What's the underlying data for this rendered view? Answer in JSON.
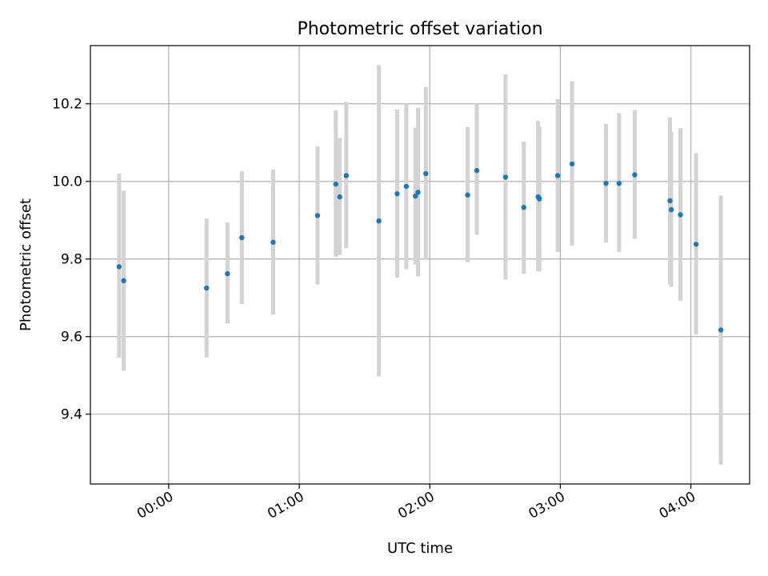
{
  "chart_data": {
    "type": "scatter",
    "title": "Photometric offset variation",
    "xlabel": "UTC time",
    "ylabel": "Photometric offset",
    "x_unit": "hours",
    "xlim": [
      -0.6,
      4.45
    ],
    "ylim": [
      9.22,
      10.35
    ],
    "grid": true,
    "xticks": [
      {
        "value": 0,
        "label": "00:00"
      },
      {
        "value": 1,
        "label": "01:00"
      },
      {
        "value": 2,
        "label": "02:00"
      },
      {
        "value": 3,
        "label": "03:00"
      },
      {
        "value": 4,
        "label": "04:00"
      }
    ],
    "yticks": [
      {
        "value": 9.4,
        "label": "9.4"
      },
      {
        "value": 9.6,
        "label": "9.6"
      },
      {
        "value": 9.8,
        "label": "9.8"
      },
      {
        "value": 10.0,
        "label": "10.0"
      },
      {
        "value": 10.2,
        "label": "10.2"
      }
    ],
    "marker_color": "#1f77b4",
    "errorbar_color": "#d3d3d3",
    "points": [
      {
        "x": -0.38,
        "y": 9.78,
        "ylo": 9.545,
        "yhi": 10.02
      },
      {
        "x": -0.345,
        "y": 9.744,
        "ylo": 9.512,
        "yhi": 9.976
      },
      {
        "x": 0.29,
        "y": 9.725,
        "ylo": 9.546,
        "yhi": 9.904
      },
      {
        "x": 0.45,
        "y": 9.762,
        "ylo": 9.634,
        "yhi": 9.894
      },
      {
        "x": 0.56,
        "y": 9.855,
        "ylo": 9.684,
        "yhi": 10.026
      },
      {
        "x": 0.8,
        "y": 9.843,
        "ylo": 9.656,
        "yhi": 10.03
      },
      {
        "x": 1.14,
        "y": 9.912,
        "ylo": 9.734,
        "yhi": 10.09
      },
      {
        "x": 1.28,
        "y": 9.993,
        "ylo": 9.806,
        "yhi": 10.183
      },
      {
        "x": 1.31,
        "y": 9.96,
        "ylo": 9.81,
        "yhi": 10.112
      },
      {
        "x": 1.36,
        "y": 10.015,
        "ylo": 9.828,
        "yhi": 10.205
      },
      {
        "x": 1.61,
        "y": 9.898,
        "ylo": 9.497,
        "yhi": 10.3
      },
      {
        "x": 1.75,
        "y": 9.968,
        "ylo": 9.752,
        "yhi": 10.185
      },
      {
        "x": 1.82,
        "y": 9.987,
        "ylo": 9.774,
        "yhi": 10.2
      },
      {
        "x": 1.89,
        "y": 9.962,
        "ylo": 9.786,
        "yhi": 10.138
      },
      {
        "x": 1.91,
        "y": 9.972,
        "ylo": 9.755,
        "yhi": 10.19
      },
      {
        "x": 1.97,
        "y": 10.02,
        "ylo": 9.8,
        "yhi": 10.243
      },
      {
        "x": 2.29,
        "y": 9.965,
        "ylo": 9.792,
        "yhi": 10.14
      },
      {
        "x": 2.36,
        "y": 10.028,
        "ylo": 9.862,
        "yhi": 10.2
      },
      {
        "x": 2.58,
        "y": 10.011,
        "ylo": 9.747,
        "yhi": 10.276
      },
      {
        "x": 2.72,
        "y": 9.933,
        "ylo": 9.762,
        "yhi": 10.102
      },
      {
        "x": 2.83,
        "y": 9.96,
        "ylo": 9.768,
        "yhi": 10.156
      },
      {
        "x": 2.84,
        "y": 9.955,
        "ylo": 9.768,
        "yhi": 10.142
      },
      {
        "x": 2.98,
        "y": 10.015,
        "ylo": 9.818,
        "yhi": 10.212
      },
      {
        "x": 3.09,
        "y": 10.045,
        "ylo": 9.834,
        "yhi": 10.258
      },
      {
        "x": 3.35,
        "y": 9.995,
        "ylo": 9.842,
        "yhi": 10.148
      },
      {
        "x": 3.45,
        "y": 9.995,
        "ylo": 9.818,
        "yhi": 10.176
      },
      {
        "x": 3.57,
        "y": 10.017,
        "ylo": 9.852,
        "yhi": 10.184
      },
      {
        "x": 3.84,
        "y": 9.95,
        "ylo": 9.734,
        "yhi": 10.165
      },
      {
        "x": 3.85,
        "y": 9.927,
        "ylo": 9.728,
        "yhi": 10.128
      },
      {
        "x": 3.92,
        "y": 9.914,
        "ylo": 9.692,
        "yhi": 10.137
      },
      {
        "x": 4.04,
        "y": 9.838,
        "ylo": 9.605,
        "yhi": 10.073
      },
      {
        "x": 4.23,
        "y": 9.617,
        "ylo": 9.27,
        "yhi": 9.964
      }
    ]
  }
}
